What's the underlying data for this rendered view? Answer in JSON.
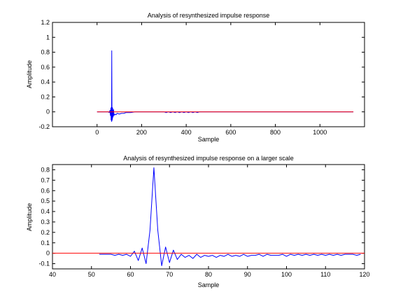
{
  "chart_data": [
    {
      "type": "line",
      "title": "Analysis of resynthesized impulse response",
      "xlabel": "Sample",
      "ylabel": "Amplitude",
      "xlim": [
        -200,
        1200
      ],
      "ylim": [
        -0.2,
        1.2
      ],
      "xticks": [
        0,
        200,
        400,
        600,
        800,
        1000
      ],
      "yticks": [
        -0.2,
        0,
        0.2,
        0.4,
        0.6,
        0.8,
        1,
        1.2
      ],
      "xtick_labels": [
        "0",
        "200",
        "400",
        "600",
        "800",
        "1000"
      ],
      "ytick_labels": [
        "-0.2",
        "0",
        "0.2",
        "0.4",
        "0.6",
        "0.8",
        "1",
        "1.2"
      ],
      "grid": false,
      "series": [
        {
          "color": "#0000ff",
          "x": [
            0,
            50,
            55,
            58,
            60,
            62,
            63,
            64,
            65,
            66,
            67,
            68,
            69,
            70,
            72,
            74,
            76,
            80,
            85,
            90,
            100,
            110,
            120,
            130,
            140,
            150,
            160,
            170,
            180,
            200,
            250,
            300,
            310,
            320,
            330,
            340,
            350,
            360,
            370,
            380,
            390,
            400,
            410,
            420,
            430,
            440,
            450,
            460,
            500,
            600,
            800,
            1000,
            1150
          ],
          "y": [
            0,
            0,
            -0.01,
            0.02,
            -0.05,
            0.05,
            -0.11,
            0.06,
            -0.13,
            0.82,
            -0.12,
            0.06,
            -0.1,
            0.05,
            -0.07,
            0.03,
            -0.05,
            -0.03,
            -0.04,
            -0.02,
            -0.03,
            -0.02,
            -0.02,
            -0.01,
            -0.01,
            -0.01,
            -0.005,
            0,
            0,
            0,
            0,
            0,
            -0.01,
            0,
            -0.01,
            0,
            -0.01,
            0,
            -0.01,
            0,
            -0.01,
            0,
            -0.01,
            0,
            -0.01,
            0,
            -0.01,
            0,
            0,
            0,
            0,
            0,
            0
          ]
        },
        {
          "color": "#ff0000",
          "x": [
            0,
            1150
          ],
          "y": [
            0,
            0
          ]
        }
      ]
    },
    {
      "type": "line",
      "title": "Analysis of resynthesized impulse response on a larger scale",
      "xlabel": "Sample",
      "ylabel": "Amplitude",
      "xlim": [
        40,
        120
      ],
      "ylim": [
        -0.15,
        0.85
      ],
      "xticks": [
        40,
        50,
        60,
        70,
        80,
        90,
        100,
        110,
        120
      ],
      "yticks": [
        -0.1,
        0,
        0.1,
        0.2,
        0.3,
        0.4,
        0.5,
        0.6,
        0.7,
        0.8
      ],
      "xtick_labels": [
        "40",
        "50",
        "60",
        "70",
        "80",
        "90",
        "100",
        "110",
        "120"
      ],
      "ytick_labels": [
        "-0.1",
        "0",
        "0.1",
        "0.2",
        "0.3",
        "0.4",
        "0.5",
        "0.6",
        "0.7",
        "0.8"
      ],
      "grid": false,
      "series": [
        {
          "color": "#0000ff",
          "x": [
            52,
            53,
            54,
            55,
            56,
            57,
            58,
            59,
            60,
            61,
            62,
            63,
            64,
            65,
            66,
            67,
            68,
            69,
            70,
            71,
            72,
            73,
            74,
            75,
            76,
            77,
            78,
            79,
            80,
            81,
            82,
            83,
            84,
            85,
            86,
            87,
            88,
            89,
            90,
            91,
            92,
            93,
            94,
            95,
            96,
            97,
            98,
            99,
            100,
            101,
            102,
            103,
            104,
            105,
            106,
            107,
            108,
            109,
            110,
            111,
            112,
            113,
            114,
            115,
            116,
            117,
            118,
            119
          ],
          "y": [
            -0.01,
            -0.01,
            -0.01,
            -0.01,
            -0.02,
            -0.01,
            -0.02,
            -0.01,
            -0.03,
            0.02,
            -0.07,
            0.05,
            -0.1,
            0.22,
            0.82,
            0.22,
            -0.12,
            0.06,
            -0.09,
            0.03,
            -0.06,
            -0.01,
            -0.04,
            -0.02,
            -0.05,
            -0.01,
            -0.04,
            -0.02,
            -0.03,
            -0.02,
            -0.04,
            -0.02,
            -0.03,
            -0.01,
            -0.03,
            -0.02,
            -0.03,
            -0.01,
            -0.03,
            -0.02,
            -0.02,
            -0.01,
            -0.03,
            -0.01,
            -0.02,
            -0.02,
            -0.02,
            -0.01,
            -0.03,
            -0.01,
            -0.02,
            -0.01,
            -0.02,
            -0.01,
            -0.02,
            -0.01,
            -0.02,
            -0.01,
            -0.02,
            -0.01,
            -0.02,
            -0.01,
            -0.02,
            -0.01,
            -0.01,
            -0.01,
            -0.02,
            -0.01
          ]
        },
        {
          "color": "#ff0000",
          "x": [
            40,
            120
          ],
          "y": [
            0,
            0
          ]
        }
      ]
    }
  ]
}
